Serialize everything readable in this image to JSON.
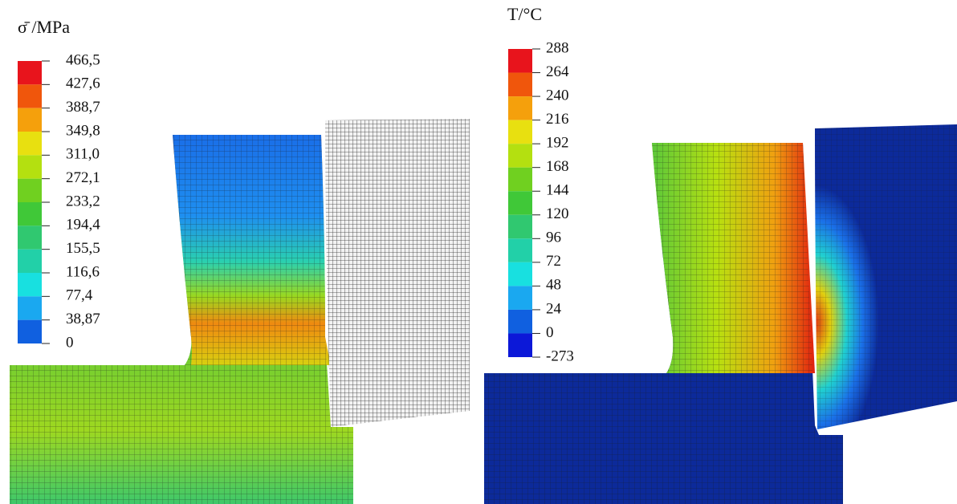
{
  "left_legend": {
    "title": "σ̄ /MPa",
    "labels": [
      "466,5",
      "427,6",
      "388,7",
      "349,8",
      "311,0",
      "272,1",
      "233,2",
      "194,4",
      "155,5",
      "116,6",
      "77,4",
      "38,87",
      "0"
    ]
  },
  "right_legend": {
    "title": "T/°C",
    "labels": [
      "288",
      "264",
      "240",
      "216",
      "192",
      "168",
      "144",
      "120",
      "96",
      "72",
      "48",
      "24",
      "0",
      "-273"
    ]
  }
}
